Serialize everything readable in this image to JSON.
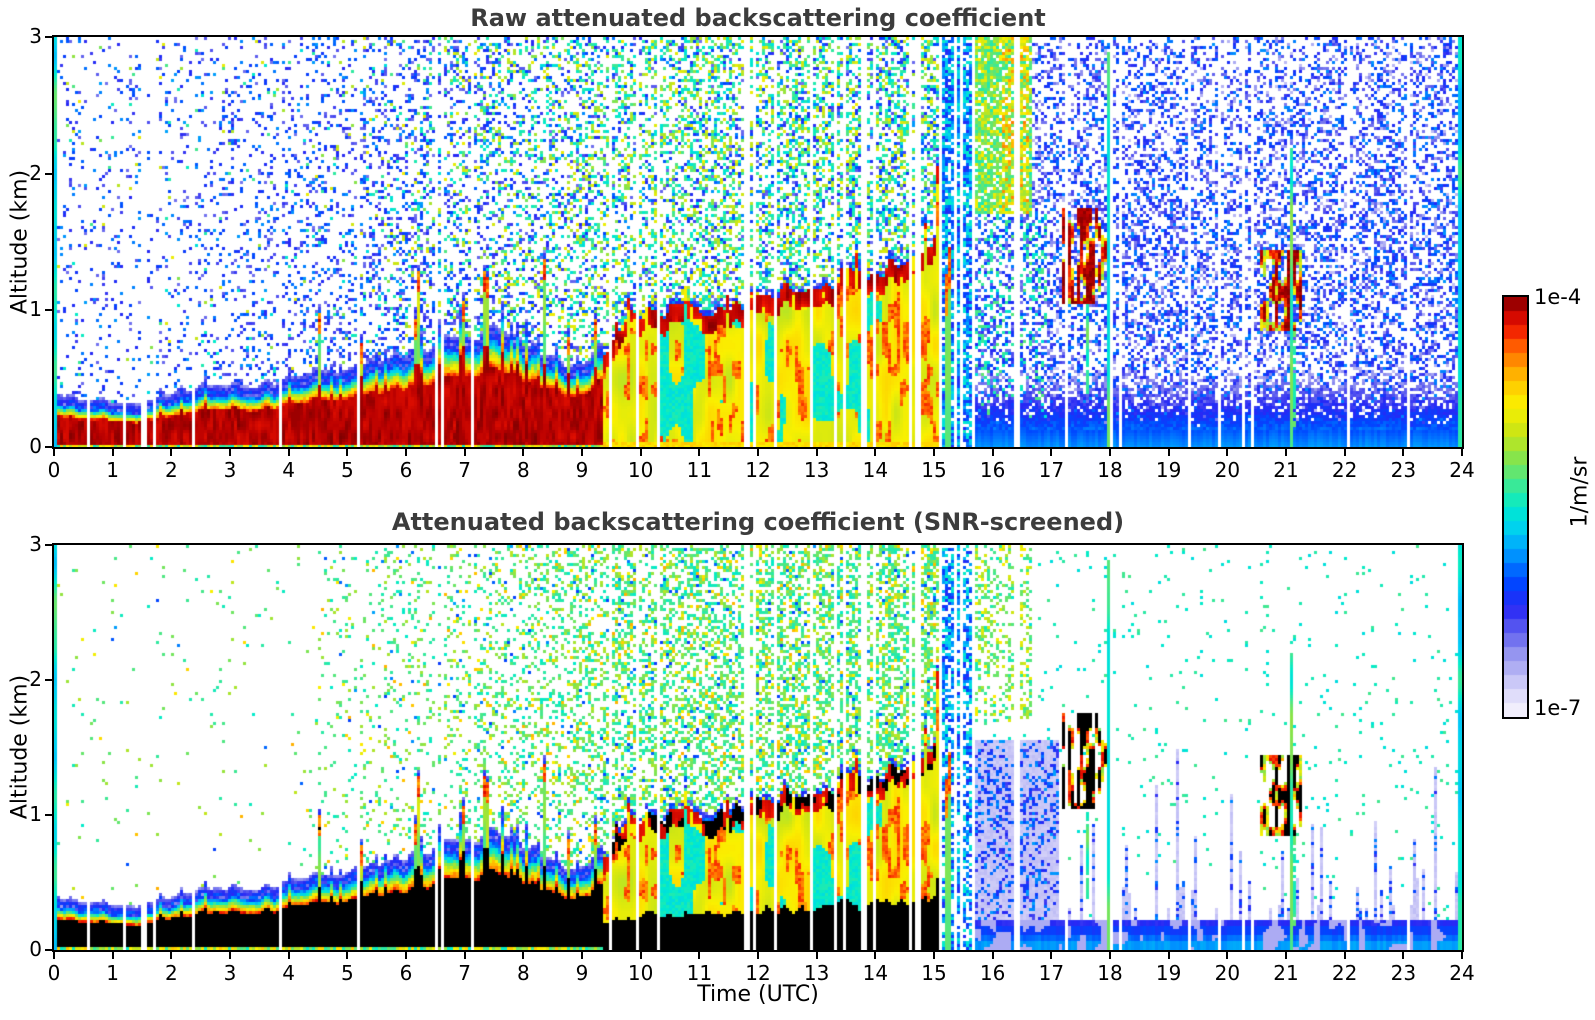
{
  "chart_data": {
    "type": "heatmap",
    "panels": [
      {
        "id": "raw",
        "title": "Raw attenuated backscattering coefficient",
        "screened": false
      },
      {
        "id": "screened",
        "title": "Attenuated backscattering coefficient (SNR-screened)",
        "screened": true
      }
    ],
    "x_axis": {
      "label": "Time (UTC)",
      "min": 0,
      "max": 24,
      "ticks": [
        0,
        1,
        2,
        3,
        4,
        5,
        6,
        7,
        8,
        9,
        10,
        11,
        12,
        13,
        14,
        15,
        16,
        17,
        18,
        19,
        20,
        21,
        22,
        23,
        24
      ]
    },
    "y_axis": {
      "label": "Altitude (km)",
      "min": 0,
      "max": 3,
      "ticks": [
        0,
        1,
        2,
        3
      ]
    },
    "colorbar": {
      "scale": "log",
      "vmax_label": "1e-4",
      "vmin_label": "1e-7",
      "unit": "1/m/sr",
      "segments": 30
    },
    "colormap_stops": [
      [
        0.0,
        248,
        246,
        253
      ],
      [
        0.05,
        225,
        222,
        250
      ],
      [
        0.1,
        190,
        188,
        245
      ],
      [
        0.15,
        148,
        148,
        240
      ],
      [
        0.2,
        98,
        98,
        238
      ],
      [
        0.26,
        40,
        40,
        245
      ],
      [
        0.32,
        0,
        70,
        255
      ],
      [
        0.38,
        0,
        140,
        255
      ],
      [
        0.44,
        0,
        205,
        245
      ],
      [
        0.5,
        0,
        235,
        205
      ],
      [
        0.56,
        70,
        232,
        140
      ],
      [
        0.62,
        140,
        228,
        70
      ],
      [
        0.68,
        205,
        230,
        20
      ],
      [
        0.74,
        250,
        240,
        0
      ],
      [
        0.79,
        255,
        205,
        0
      ],
      [
        0.84,
        255,
        150,
        0
      ],
      [
        0.89,
        255,
        80,
        0
      ],
      [
        0.93,
        238,
        20,
        0
      ],
      [
        0.97,
        185,
        0,
        0
      ],
      [
        1.0,
        127,
        0,
        0
      ]
    ],
    "boundary_layer_km": [
      [
        0,
        0.33
      ],
      [
        0.7,
        0.29
      ],
      [
        1.5,
        0.27
      ],
      [
        2,
        0.34
      ],
      [
        2.6,
        0.42
      ],
      [
        3.2,
        0.4
      ],
      [
        4,
        0.44
      ],
      [
        4.6,
        0.5
      ],
      [
        5,
        0.52
      ],
      [
        5.6,
        0.58
      ],
      [
        6,
        0.62
      ],
      [
        6.5,
        0.68
      ],
      [
        7,
        0.78
      ],
      [
        7.5,
        0.8
      ],
      [
        8,
        0.72
      ],
      [
        8.6,
        0.6
      ],
      [
        9,
        0.52
      ],
      [
        9.4,
        0.72
      ],
      [
        9.8,
        0.95
      ],
      [
        10.3,
        1.02
      ],
      [
        11,
        1.0
      ],
      [
        11.7,
        1.08
      ],
      [
        12.3,
        1.12
      ],
      [
        13,
        1.18
      ],
      [
        13.6,
        1.25
      ],
      [
        14.2,
        1.32
      ],
      [
        14.7,
        1.45
      ],
      [
        15.1,
        1.6
      ]
    ],
    "plumes": [
      {
        "t": 4.52,
        "w": 0.06,
        "top": 0.95
      },
      {
        "t": 5.25,
        "w": 0.05,
        "top": 0.75
      },
      {
        "t": 6.2,
        "w": 0.08,
        "top": 1.25
      },
      {
        "t": 6.55,
        "w": 0.04,
        "top": 0.9
      },
      {
        "t": 6.95,
        "w": 0.07,
        "top": 1.2
      },
      {
        "t": 7.35,
        "w": 0.09,
        "top": 1.3
      },
      {
        "t": 7.65,
        "w": 0.05,
        "top": 1.1
      },
      {
        "t": 8.05,
        "w": 0.05,
        "top": 0.95
      },
      {
        "t": 8.35,
        "w": 0.04,
        "top": 1.45
      },
      {
        "t": 8.75,
        "w": 0.04,
        "top": 0.9
      },
      {
        "t": 9.2,
        "w": 0.05,
        "top": 1.0
      },
      {
        "t": 14.85,
        "w": 0.05,
        "top": 1.9
      },
      {
        "t": 15.05,
        "w": 0.06,
        "top": 2.1
      },
      {
        "t": 15.22,
        "w": 0.05,
        "top": 1.8
      }
    ],
    "clouds": [
      {
        "t0": 17.15,
        "t1": 17.95,
        "base": 1.05,
        "top": 1.75
      },
      {
        "t0": 20.55,
        "t1": 21.25,
        "base": 0.85,
        "top": 1.45
      }
    ],
    "high_cloud": {
      "t0": 15.45,
      "t1": 16.65,
      "base": 1.7,
      "top": 3.0,
      "orange_center": 16.35
    },
    "special_columns": [
      {
        "t": 0.03,
        "w": 0.035,
        "v": 0.5,
        "zmax": 3.0
      },
      {
        "t": 17.93,
        "w": 0.03,
        "v": 0.55,
        "zmax": 2.9
      },
      {
        "t": 21.05,
        "w": 0.022,
        "v": 0.55,
        "zmax": 2.2
      },
      {
        "t": 23.95,
        "w": 0.045,
        "v": 0.47,
        "zmax": 3.0
      }
    ],
    "transition_utc": 15.08,
    "convective_start_utc": 9.35,
    "gap_stripes": {
      "count": 55,
      "seed": 11
    },
    "lavender_stripes": {
      "density": 0.3,
      "seed": 21
    }
  }
}
